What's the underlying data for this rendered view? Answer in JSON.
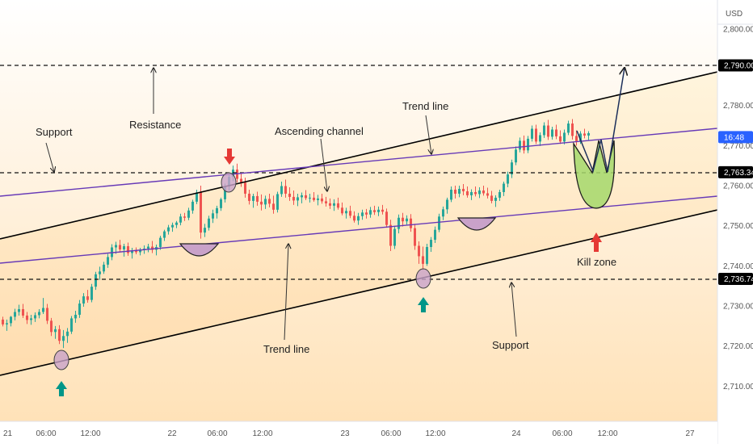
{
  "chart_data": {
    "type": "candlestick",
    "currency": "USD",
    "price_ticks": [
      "2,710.00",
      "2,720.00",
      "2,730.00",
      "2,740.00",
      "2,750.00",
      "2,760.00",
      "2,770.00",
      "2,780.00",
      "2,800.00"
    ],
    "time_ticks": [
      "21",
      "06:00",
      "12:00",
      "22",
      "06:00",
      "12:00",
      "23",
      "06:00",
      "12:00",
      "24",
      "06:00",
      "12:00",
      "27"
    ],
    "price_badges": [
      {
        "label": "2,790.00",
        "price": 2790.0,
        "color": "#000000"
      },
      {
        "label": "16:48",
        "price": 2772.1,
        "color": "#2962ff"
      },
      {
        "label": "2,763.34",
        "price": 2763.34,
        "color": "#000000"
      },
      {
        "label": "2,736.74",
        "price": 2736.74,
        "color": "#000000"
      }
    ],
    "horizontal_levels": [
      2790.0,
      2763.34,
      2736.74
    ],
    "annotations": [
      "Support",
      "Resistance",
      "Ascending channel",
      "Trend line",
      "Trend line",
      "Support",
      "Kill zone"
    ],
    "colors": {
      "up": "#26a69a",
      "down": "#ef5350",
      "channel_line": "#000000",
      "trend_line": "#673ab7",
      "kill_zone": "#8bc34a",
      "touch_marker": "#c9a2c9",
      "bg_top": "#ffffff",
      "bg_bottom": "#ffe0b2"
    },
    "candles": [
      [
        2726.6,
        2727.3,
        2724.9,
        2725.4
      ],
      [
        2725.4,
        2726.6,
        2723.8,
        2725.7
      ],
      [
        2725.7,
        2727.5,
        2724.9,
        2727.3
      ],
      [
        2727.3,
        2729.3,
        2726.4,
        2728.5
      ],
      [
        2728.5,
        2730.3,
        2727.6,
        2729.2
      ],
      [
        2729.2,
        2730.5,
        2727.0,
        2727.6
      ],
      [
        2727.6,
        2728.5,
        2725.5,
        2726.5
      ],
      [
        2726.5,
        2727.8,
        2725.3,
        2726.9
      ],
      [
        2726.9,
        2728.4,
        2726.0,
        2727.7
      ],
      [
        2727.7,
        2729.2,
        2726.9,
        2728.5
      ],
      [
        2728.5,
        2732.0,
        2728.0,
        2729.5
      ],
      [
        2729.5,
        2730.5,
        2725.5,
        2726.3
      ],
      [
        2726.3,
        2727.0,
        2722.5,
        2723.5
      ],
      [
        2723.5,
        2725.0,
        2721.8,
        2724.2
      ],
      [
        2724.2,
        2725.2,
        2720.5,
        2721.3
      ],
      [
        2721.3,
        2724.0,
        2719.5,
        2722.5
      ],
      [
        2722.5,
        2724.5,
        2720.8,
        2723.6
      ],
      [
        2723.6,
        2727.5,
        2723.0,
        2726.9
      ],
      [
        2726.9,
        2728.8,
        2725.8,
        2727.8
      ],
      [
        2727.8,
        2731.5,
        2727.0,
        2730.6
      ],
      [
        2730.6,
        2733.2,
        2729.8,
        2732.4
      ],
      [
        2732.4,
        2734.0,
        2730.8,
        2731.5
      ],
      [
        2731.5,
        2735.5,
        2730.9,
        2734.8
      ],
      [
        2734.8,
        2738.5,
        2734.0,
        2737.9
      ],
      [
        2737.9,
        2739.8,
        2736.5,
        2738.6
      ],
      [
        2738.6,
        2741.0,
        2738.0,
        2740.3
      ],
      [
        2740.3,
        2743.0,
        2739.5,
        2742.2
      ],
      [
        2742.2,
        2745.4,
        2741.4,
        2744.6
      ],
      [
        2744.6,
        2746.0,
        2743.0,
        2745.2
      ],
      [
        2745.2,
        2746.5,
        2743.5,
        2744.1
      ],
      [
        2744.1,
        2745.5,
        2742.3,
        2744.9
      ],
      [
        2744.9,
        2745.8,
        2742.5,
        2743.2
      ],
      [
        2743.2,
        2744.5,
        2741.8,
        2743.8
      ],
      [
        2743.8,
        2744.6,
        2742.9,
        2743.4
      ],
      [
        2743.4,
        2744.5,
        2742.6,
        2744.0
      ],
      [
        2744.0,
        2745.1,
        2743.0,
        2744.3
      ],
      [
        2744.3,
        2745.5,
        2743.4,
        2744.8
      ],
      [
        2744.8,
        2746.2,
        2743.2,
        2744.0
      ],
      [
        2744.0,
        2745.3,
        2742.6,
        2744.7
      ],
      [
        2744.7,
        2747.5,
        2744.0,
        2747.0
      ],
      [
        2747.0,
        2749.0,
        2746.2,
        2748.6
      ],
      [
        2748.6,
        2750.2,
        2747.8,
        2749.6
      ],
      [
        2749.6,
        2750.8,
        2748.5,
        2750.2
      ],
      [
        2750.2,
        2751.2,
        2749.4,
        2750.8
      ],
      [
        2750.8,
        2753.0,
        2750.1,
        2752.3
      ],
      [
        2752.3,
        2753.2,
        2751.2,
        2752.0
      ],
      [
        2752.0,
        2754.5,
        2751.4,
        2753.8
      ],
      [
        2753.8,
        2756.5,
        2753.0,
        2756.0
      ],
      [
        2756.0,
        2759.0,
        2755.4,
        2758.3
      ],
      [
        2758.3,
        2760.0,
        2746.8,
        2748.3
      ],
      [
        2748.3,
        2750.5,
        2747.2,
        2749.5
      ],
      [
        2749.5,
        2752.5,
        2748.8,
        2751.8
      ],
      [
        2751.8,
        2754.0,
        2750.7,
        2753.1
      ],
      [
        2753.1,
        2755.0,
        2751.8,
        2754.4
      ],
      [
        2754.4,
        2757.0,
        2753.7,
        2756.6
      ],
      [
        2756.6,
        2760.5,
        2755.8,
        2759.8
      ],
      [
        2759.8,
        2763.0,
        2758.8,
        2762.2
      ],
      [
        2762.2,
        2765.0,
        2761.1,
        2764.0
      ],
      [
        2764.0,
        2765.5,
        2760.8,
        2761.7
      ],
      [
        2761.7,
        2763.3,
        2759.7,
        2760.8
      ],
      [
        2760.8,
        2762.0,
        2757.0,
        2758.0
      ],
      [
        2758.0,
        2759.0,
        2755.3,
        2756.2
      ],
      [
        2756.2,
        2758.0,
        2754.5,
        2757.4
      ],
      [
        2757.4,
        2758.5,
        2755.0,
        2756.0
      ],
      [
        2756.0,
        2757.8,
        2753.8,
        2755.3
      ],
      [
        2755.3,
        2757.5,
        2754.2,
        2756.7
      ],
      [
        2756.7,
        2758.0,
        2754.6,
        2755.5
      ],
      [
        2755.5,
        2757.5,
        2753.0,
        2754.0
      ],
      [
        2754.0,
        2758.5,
        2753.3,
        2757.9
      ],
      [
        2757.9,
        2761.0,
        2757.2,
        2759.9
      ],
      [
        2759.9,
        2761.5,
        2757.0,
        2758.0
      ],
      [
        2758.0,
        2759.6,
        2756.2,
        2757.2
      ],
      [
        2757.2,
        2758.8,
        2755.2,
        2756.3
      ],
      [
        2756.3,
        2758.0,
        2754.9,
        2757.1
      ],
      [
        2757.1,
        2758.3,
        2755.6,
        2757.6
      ],
      [
        2757.6,
        2758.9,
        2756.4,
        2756.9
      ],
      [
        2756.9,
        2758.0,
        2755.8,
        2757.0
      ],
      [
        2757.0,
        2758.4,
        2756.0,
        2756.4
      ],
      [
        2756.4,
        2757.7,
        2755.1,
        2756.8
      ],
      [
        2756.8,
        2758.0,
        2755.5,
        2756.1
      ],
      [
        2756.1,
        2757.2,
        2754.8,
        2755.6
      ],
      [
        2755.6,
        2756.8,
        2754.2,
        2755.0
      ],
      [
        2755.0,
        2756.6,
        2753.7,
        2755.6
      ],
      [
        2755.6,
        2757.0,
        2754.0,
        2754.5
      ],
      [
        2754.5,
        2755.8,
        2752.6,
        2753.1
      ],
      [
        2753.1,
        2754.5,
        2751.8,
        2753.7
      ],
      [
        2753.7,
        2755.0,
        2751.9,
        2752.5
      ],
      [
        2752.5,
        2753.6,
        2750.8,
        2751.3
      ],
      [
        2751.3,
        2753.2,
        2750.2,
        2752.4
      ],
      [
        2752.4,
        2754.0,
        2751.5,
        2753.3
      ],
      [
        2753.3,
        2754.2,
        2751.8,
        2752.8
      ],
      [
        2752.8,
        2754.7,
        2752.0,
        2753.9
      ],
      [
        2753.9,
        2755.0,
        2752.7,
        2753.4
      ],
      [
        2753.4,
        2754.8,
        2752.4,
        2754.0
      ],
      [
        2754.0,
        2755.2,
        2752.8,
        2753.5
      ],
      [
        2753.5,
        2754.3,
        2749.5,
        2750.2
      ],
      [
        2750.2,
        2751.5,
        2743.7,
        2745.0
      ],
      [
        2745.0,
        2750.0,
        2744.2,
        2749.2
      ],
      [
        2749.2,
        2752.8,
        2748.1,
        2752.0
      ],
      [
        2752.0,
        2753.2,
        2749.8,
        2751.1
      ],
      [
        2751.1,
        2752.6,
        2750.3,
        2751.8
      ],
      [
        2751.8,
        2752.9,
        2748.5,
        2749.4
      ],
      [
        2749.4,
        2750.5,
        2744.0,
        2745.0
      ],
      [
        2745.0,
        2746.1,
        2740.5,
        2742.4
      ],
      [
        2742.4,
        2744.8,
        2739.0,
        2740.5
      ],
      [
        2740.5,
        2745.5,
        2740.0,
        2744.7
      ],
      [
        2744.7,
        2747.2,
        2743.5,
        2746.5
      ],
      [
        2746.5,
        2749.8,
        2745.7,
        2749.0
      ],
      [
        2749.0,
        2753.0,
        2748.4,
        2752.3
      ],
      [
        2752.3,
        2754.8,
        2751.4,
        2754.1
      ],
      [
        2754.1,
        2757.0,
        2753.0,
        2756.5
      ],
      [
        2756.5,
        2759.8,
        2755.9,
        2759.0
      ],
      [
        2759.0,
        2760.0,
        2756.8,
        2758.0
      ],
      [
        2758.0,
        2760.0,
        2757.1,
        2759.2
      ],
      [
        2759.2,
        2760.4,
        2757.6,
        2758.6
      ],
      [
        2758.6,
        2759.8,
        2757.0,
        2757.6
      ],
      [
        2757.6,
        2759.1,
        2756.4,
        2758.4
      ],
      [
        2758.4,
        2759.8,
        2757.3,
        2757.9
      ],
      [
        2757.9,
        2759.6,
        2756.9,
        2758.8
      ],
      [
        2758.8,
        2760.0,
        2757.5,
        2758.1
      ],
      [
        2758.1,
        2759.5,
        2756.8,
        2757.5
      ],
      [
        2757.5,
        2758.7,
        2755.6,
        2756.2
      ],
      [
        2756.2,
        2757.6,
        2754.7,
        2757.0
      ],
      [
        2757.0,
        2759.0,
        2756.2,
        2758.4
      ],
      [
        2758.4,
        2761.0,
        2757.4,
        2760.5
      ],
      [
        2760.5,
        2763.5,
        2759.6,
        2762.8
      ],
      [
        2762.8,
        2766.5,
        2761.9,
        2765.8
      ],
      [
        2765.8,
        2769.8,
        2765.1,
        2769.0
      ],
      [
        2769.0,
        2772.0,
        2768.3,
        2771.2
      ],
      [
        2771.2,
        2772.5,
        2768.0,
        2768.8
      ],
      [
        2768.8,
        2772.4,
        2768.1,
        2771.7
      ],
      [
        2771.7,
        2775.0,
        2771.0,
        2774.2
      ],
      [
        2774.2,
        2775.2,
        2770.4,
        2771.0
      ],
      [
        2771.0,
        2773.3,
        2769.9,
        2772.6
      ],
      [
        2772.6,
        2775.8,
        2771.9,
        2775.0
      ],
      [
        2775.0,
        2776.4,
        2771.4,
        2772.2
      ],
      [
        2772.2,
        2774.7,
        2771.5,
        2774.0
      ],
      [
        2774.0,
        2775.2,
        2771.6,
        2772.3
      ],
      [
        2772.3,
        2773.8,
        2770.4,
        2771.0
      ],
      [
        2771.0,
        2774.0,
        2770.3,
        2773.2
      ],
      [
        2773.2,
        2776.2,
        2772.6,
        2775.5
      ],
      [
        2775.5,
        2776.6,
        2771.5,
        2772.4
      ],
      [
        2772.4,
        2773.8,
        2770.0,
        2771.1
      ],
      [
        2771.1,
        2773.6,
        2770.4,
        2773.0
      ],
      [
        2773.0,
        2774.2,
        2771.8,
        2772.5
      ],
      [
        2772.5,
        2773.6,
        2771.4,
        2773.1
      ]
    ]
  }
}
